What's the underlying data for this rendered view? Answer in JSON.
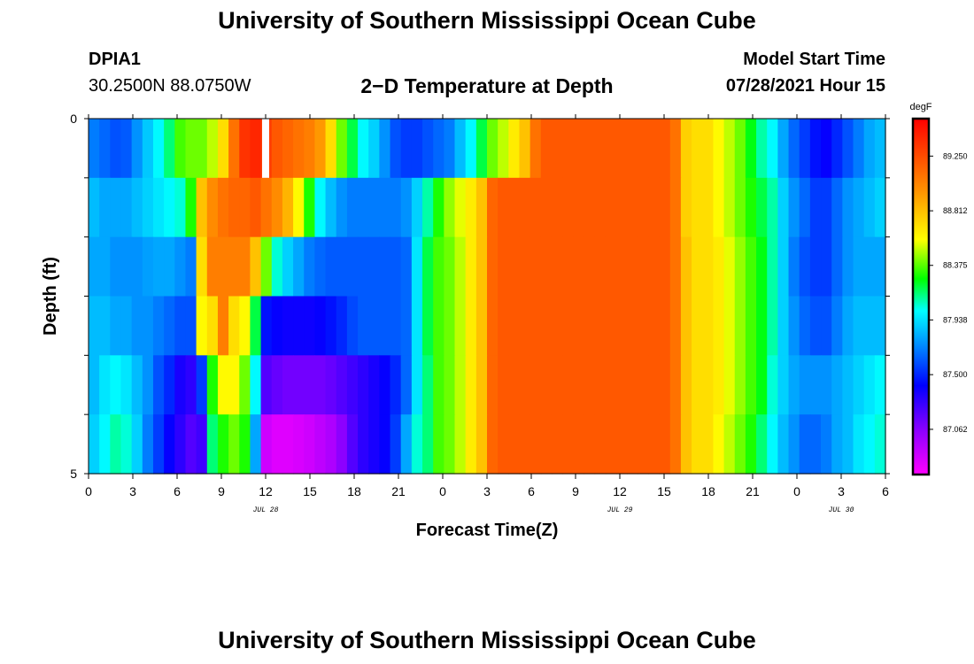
{
  "header": {
    "title": "University of Southern Mississippi Ocean Cube",
    "station_id": "DPIA1",
    "station_coords": "30.2500N  88.0750W",
    "plot_title": "2−D Temperature at Depth",
    "model_start_label": "Model Start Time",
    "model_start_value": "07/28/2021 Hour 15"
  },
  "footer": {
    "title": "University of Southern Mississippi Ocean Cube"
  },
  "chart_data": {
    "type": "heatmap",
    "title": "2−D Temperature at Depth",
    "xlabel": "Forecast Time(Z)",
    "ylabel": "Depth (ft)",
    "x_hours_range": [
      0,
      54
    ],
    "x_start": "07/28/2021 00Z",
    "x_ticks": [
      "0",
      "3",
      "6",
      "9",
      "12",
      "15",
      "18",
      "21",
      "0",
      "3",
      "6",
      "9",
      "12",
      "15",
      "18",
      "21",
      "0",
      "3",
      "6"
    ],
    "date_labels": [
      {
        "label": "JUL 28",
        "hour": 12
      },
      {
        "label": "JUL 29",
        "hour": 36
      },
      {
        "label": "JUL 30",
        "hour": 51
      }
    ],
    "y_ticks": [
      "0",
      "5"
    ],
    "ylim": [
      5,
      0
    ],
    "depth_bands": [
      0,
      1,
      2,
      3,
      4,
      5
    ],
    "missing_cells": [
      {
        "depth_band": 0,
        "hour": 12
      }
    ],
    "colorbar": {
      "unit": "degF",
      "min": 86.7,
      "max": 89.55,
      "labels": [
        "89.250",
        "88.812",
        "88.375",
        "87.938",
        "87.500",
        "87.062"
      ]
    },
    "temperature_degF": [
      [
        87.7,
        87.65,
        87.6,
        87.62,
        87.75,
        87.88,
        88.0,
        88.15,
        88.35,
        88.4,
        88.4,
        88.5,
        88.7,
        89.1,
        89.35,
        89.4,
        89.3,
        89.2,
        89.15,
        89.1,
        89.05,
        88.95,
        88.7,
        88.4,
        88.2,
        88.0,
        87.9,
        87.75,
        87.6,
        87.55,
        87.55,
        87.6,
        87.65,
        87.7,
        87.85,
        88.0,
        88.2,
        88.4,
        88.5,
        88.65,
        88.8,
        89.1,
        89.2,
        89.2,
        89.2,
        89.2,
        89.2,
        89.2,
        89.2,
        89.2,
        89.2,
        89.2,
        89.2,
        89.2,
        89.1,
        88.75,
        88.7,
        88.7,
        88.6,
        88.5,
        88.4,
        88.25,
        88.1,
        88.0,
        87.8,
        87.65,
        87.55,
        87.45,
        87.4,
        87.5,
        87.6,
        87.7,
        87.8,
        87.85
      ],
      [
        87.85,
        87.8,
        87.8,
        87.8,
        87.85,
        87.9,
        87.95,
        88.0,
        88.05,
        88.3,
        88.8,
        89.0,
        89.1,
        89.15,
        89.15,
        89.2,
        89.1,
        89.0,
        88.85,
        88.6,
        88.3,
        88.0,
        87.85,
        87.75,
        87.7,
        87.7,
        87.7,
        87.7,
        87.7,
        87.75,
        87.9,
        88.1,
        88.3,
        88.45,
        88.55,
        88.65,
        88.8,
        89.15,
        89.2,
        89.2,
        89.2,
        89.2,
        89.2,
        89.2,
        89.2,
        89.2,
        89.2,
        89.2,
        89.2,
        89.2,
        89.2,
        89.2,
        89.2,
        89.2,
        89.1,
        88.75,
        88.7,
        88.7,
        88.6,
        88.5,
        88.4,
        88.3,
        88.2,
        88.1,
        87.9,
        87.75,
        87.65,
        87.55,
        87.55,
        87.65,
        87.75,
        87.8,
        87.85,
        87.9
      ],
      [
        87.8,
        87.8,
        87.75,
        87.75,
        87.75,
        87.78,
        87.8,
        87.8,
        87.75,
        87.7,
        88.7,
        89.05,
        89.05,
        89.05,
        89.05,
        88.8,
        88.4,
        88.05,
        87.9,
        87.8,
        87.7,
        87.65,
        87.62,
        87.62,
        87.62,
        87.62,
        87.62,
        87.62,
        87.62,
        87.65,
        87.95,
        88.2,
        88.35,
        88.4,
        88.5,
        88.65,
        88.8,
        89.15,
        89.2,
        89.2,
        89.2,
        89.2,
        89.2,
        89.2,
        89.2,
        89.2,
        89.2,
        89.2,
        89.2,
        89.2,
        89.2,
        89.2,
        89.2,
        89.2,
        89.1,
        88.8,
        88.7,
        88.7,
        88.65,
        88.55,
        88.45,
        88.35,
        88.25,
        88.1,
        87.9,
        87.7,
        87.6,
        87.55,
        87.55,
        87.65,
        87.75,
        87.8,
        87.8,
        87.8
      ],
      [
        87.85,
        87.85,
        87.8,
        87.8,
        87.75,
        87.75,
        87.7,
        87.65,
        87.6,
        87.6,
        88.6,
        88.7,
        89.05,
        88.7,
        88.6,
        88.2,
        87.45,
        87.4,
        87.38,
        87.38,
        87.38,
        87.4,
        87.45,
        87.5,
        87.58,
        87.62,
        87.62,
        87.62,
        87.62,
        87.65,
        87.95,
        88.2,
        88.35,
        88.4,
        88.5,
        88.65,
        88.8,
        89.15,
        89.2,
        89.2,
        89.2,
        89.2,
        89.2,
        89.2,
        89.2,
        89.2,
        89.2,
        89.2,
        89.2,
        89.2,
        89.2,
        89.2,
        89.2,
        89.2,
        89.1,
        88.8,
        88.7,
        88.7,
        88.65,
        88.55,
        88.45,
        88.35,
        88.25,
        88.1,
        87.9,
        87.75,
        87.65,
        87.6,
        87.6,
        87.7,
        87.8,
        87.85,
        87.85,
        87.85
      ],
      [
        87.85,
        87.95,
        88.0,
        87.95,
        87.85,
        87.75,
        87.6,
        87.5,
        87.35,
        87.3,
        87.55,
        88.3,
        88.6,
        88.6,
        88.4,
        88.0,
        87.2,
        87.15,
        87.12,
        87.12,
        87.12,
        87.12,
        87.15,
        87.2,
        87.25,
        87.3,
        87.35,
        87.4,
        87.5,
        87.65,
        87.95,
        88.15,
        88.35,
        88.4,
        88.5,
        88.65,
        88.8,
        89.15,
        89.2,
        89.2,
        89.2,
        89.2,
        89.2,
        89.2,
        89.2,
        89.2,
        89.2,
        89.2,
        89.2,
        89.2,
        89.2,
        89.2,
        89.2,
        89.2,
        89.1,
        88.8,
        88.7,
        88.7,
        88.65,
        88.55,
        88.45,
        88.35,
        88.25,
        88.05,
        87.9,
        87.8,
        87.75,
        87.75,
        87.75,
        87.8,
        87.85,
        87.9,
        87.95,
        88.0
      ],
      [
        87.9,
        88.0,
        88.1,
        88.05,
        87.9,
        87.7,
        87.55,
        87.4,
        87.3,
        87.2,
        87.25,
        88.15,
        88.3,
        88.4,
        88.3,
        87.8,
        86.85,
        86.8,
        86.8,
        86.82,
        86.85,
        86.9,
        86.95,
        87.05,
        87.2,
        87.3,
        87.35,
        87.4,
        87.55,
        87.8,
        88.05,
        88.15,
        88.35,
        88.4,
        88.5,
        88.65,
        88.8,
        89.15,
        89.2,
        89.2,
        89.2,
        89.2,
        89.2,
        89.2,
        89.2,
        89.2,
        89.2,
        89.2,
        89.2,
        89.2,
        89.2,
        89.2,
        89.2,
        89.2,
        89.1,
        88.8,
        88.7,
        88.7,
        88.6,
        88.5,
        88.4,
        88.3,
        88.15,
        88.0,
        87.85,
        87.75,
        87.65,
        87.65,
        87.7,
        87.8,
        87.85,
        87.95,
        88.0,
        88.05
      ]
    ]
  }
}
